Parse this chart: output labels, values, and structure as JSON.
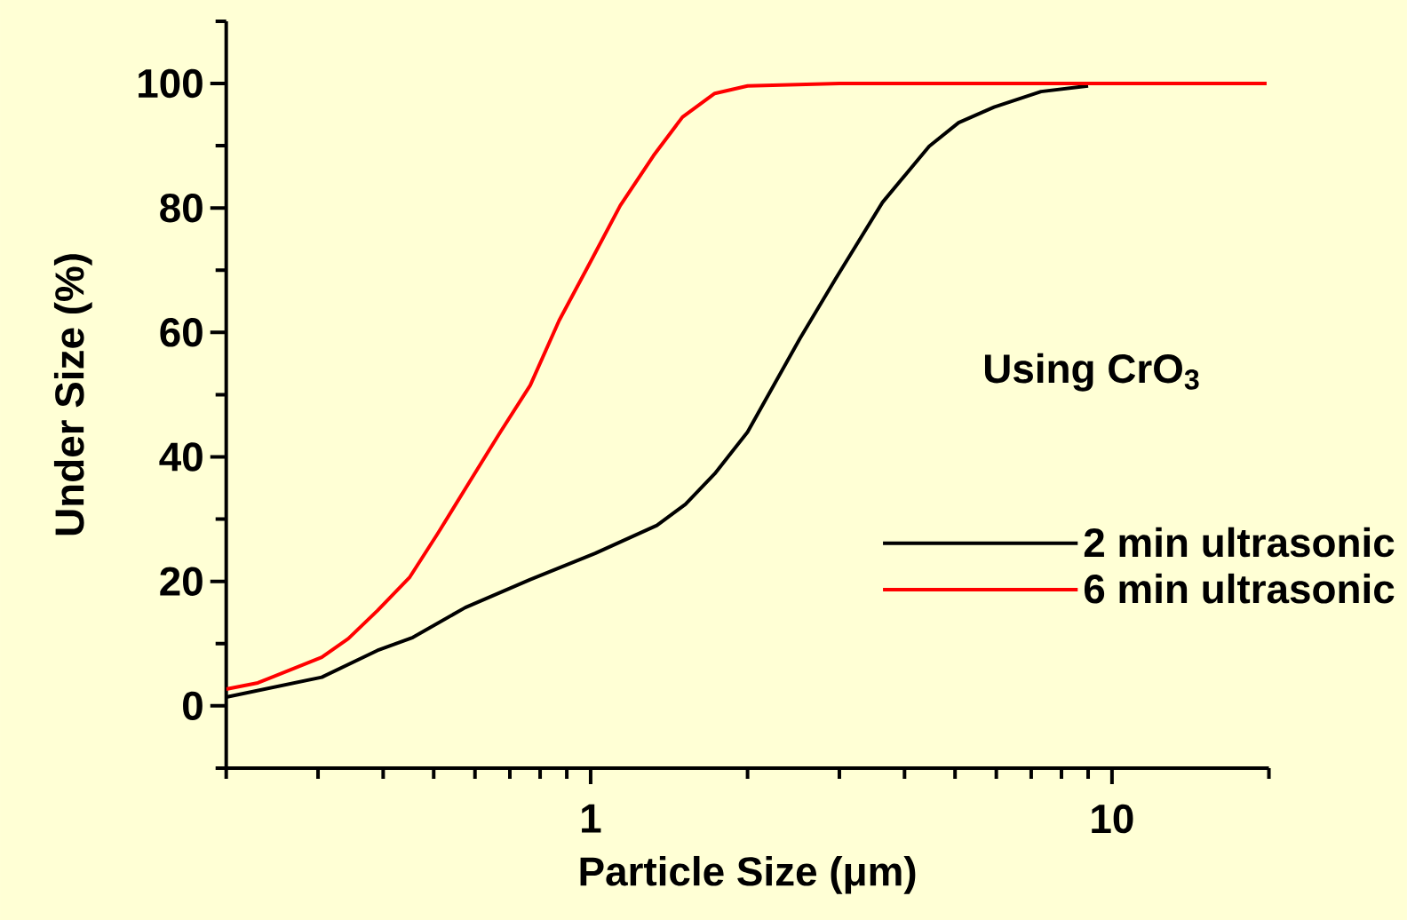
{
  "chart_data": {
    "type": "line",
    "xlabel": "Particle Size (μm)",
    "ylabel": "Under Size (%)",
    "log": "x",
    "xlim": [
      0.2,
      20
    ],
    "ylim": [
      -10,
      110
    ],
    "xticks": [
      {
        "value": 0.2,
        "label": null
      },
      {
        "value": 0.3,
        "label": null
      },
      {
        "value": 0.4,
        "label": null
      },
      {
        "value": 0.5,
        "label": null
      },
      {
        "value": 0.6,
        "label": null
      },
      {
        "value": 0.7,
        "label": null
      },
      {
        "value": 0.8,
        "label": null
      },
      {
        "value": 0.9,
        "label": null
      },
      1,
      {
        "value": 2,
        "label": null
      },
      {
        "value": 3,
        "label": null
      },
      {
        "value": 4,
        "label": null
      },
      {
        "value": 5,
        "label": null
      },
      {
        "value": 6,
        "label": null
      },
      {
        "value": 7,
        "label": null
      },
      {
        "value": 8,
        "label": null
      },
      {
        "value": 9,
        "label": null
      },
      10,
      {
        "value": 20,
        "label": null
      }
    ],
    "yticks": [
      {
        "value": -10,
        "label": null
      },
      0,
      {
        "value": 10,
        "label": null
      },
      20,
      {
        "value": 30,
        "label": null
      },
      40,
      {
        "value": 50,
        "label": null
      },
      60,
      {
        "value": 70,
        "label": null
      },
      80,
      {
        "value": 90,
        "label": null
      },
      100,
      {
        "value": 110,
        "label": null
      }
    ],
    "annotations": [
      "Using CrO$_{3}$"
    ],
    "legend": "right",
    "marker": "none",
    "line_style": "solid",
    "grid": false,
    "series": [
      {
        "name": "2 min ultrasonic",
        "color": "#000000",
        "x": [
          0.2,
          0.305,
          0.39,
          0.456,
          0.575,
          0.766,
          1.02,
          1.34,
          1.52,
          1.73,
          2.0,
          2.52,
          2.95,
          3.63,
          4.46,
          5.08,
          5.94,
          7.31,
          9.0
        ],
        "values": [
          1.4,
          4.6,
          8.9,
          11,
          15.8,
          20.3,
          24.5,
          29,
          32.4,
          37.3,
          44,
          59,
          68.6,
          80.9,
          89.9,
          93.7,
          96.2,
          98.7,
          99.6
        ]
      },
      {
        "name": "6 min ultrasonic",
        "color": "#ff0000",
        "x": [
          0.2,
          0.23,
          0.305,
          0.343,
          0.39,
          0.45,
          0.51,
          0.58,
          0.67,
          0.766,
          0.87,
          1.0,
          1.14,
          1.32,
          1.5,
          1.73,
          2.0,
          3.0,
          19.8
        ],
        "values": [
          2.7,
          3.7,
          7.8,
          10.8,
          15.3,
          20.7,
          27.8,
          35.4,
          43.9,
          51.5,
          61.9,
          71.4,
          80.4,
          88.4,
          94.6,
          98.4,
          99.6,
          100,
          100
        ]
      }
    ]
  }
}
